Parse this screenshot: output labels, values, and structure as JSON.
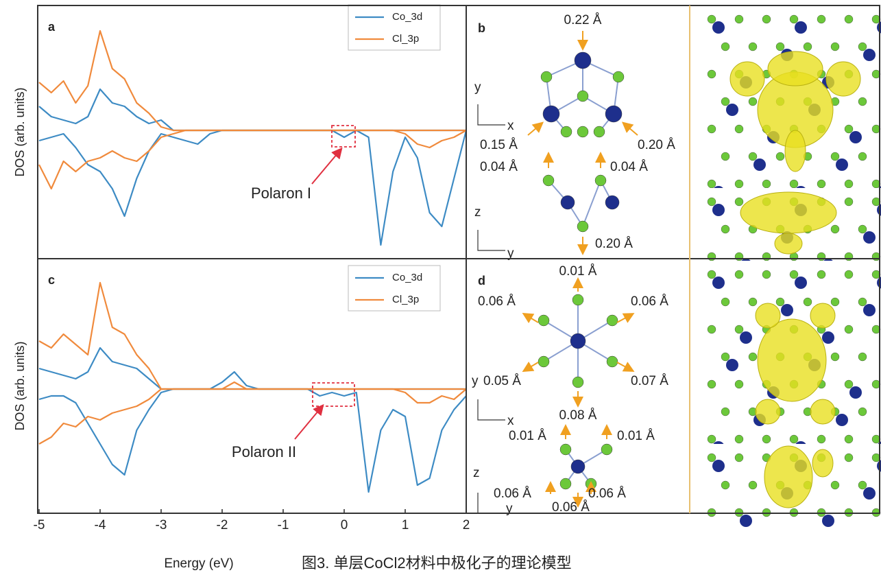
{
  "chart_data": [
    {
      "type": "line",
      "panel": "a",
      "ylabel": "DOS (arb. units)",
      "x": [
        -5,
        -4.8,
        -4.6,
        -4.4,
        -4.2,
        -4,
        -3.8,
        -3.6,
        -3.4,
        -3.2,
        -3,
        -2.8,
        -2.6,
        -2.4,
        -2.2,
        -2,
        -1.8,
        -1.6,
        -1.4,
        -1.2,
        -1,
        -0.8,
        -0.6,
        -0.4,
        -0.2,
        0,
        0.2,
        0.4,
        0.6,
        0.8,
        1,
        1.2,
        1.4,
        1.6,
        1.8,
        2
      ],
      "xlim": [
        -5,
        2
      ],
      "ylim": [
        -9.35,
        9.1
      ],
      "series": [
        {
          "name": "Co_3d",
          "color": "#3d8bc4",
          "values": [
            1.75,
            1,
            0.75,
            0.5,
            1,
            3,
            2,
            1.75,
            1,
            0.5,
            0.75,
            0,
            0,
            0,
            0,
            0,
            0,
            0,
            0,
            0,
            0,
            0,
            0,
            0,
            0,
            0,
            0,
            0,
            0,
            0,
            0,
            0,
            0,
            0,
            0,
            0
          ],
          "values_down": [
            -0.75,
            -0.5,
            -0.25,
            -1.25,
            -2.5,
            -3,
            -4.25,
            -6.25,
            -3.5,
            -1.5,
            -0.25,
            -0.5,
            -0.75,
            -1,
            -0.25,
            0,
            0,
            0,
            0,
            0,
            0,
            0,
            0,
            0,
            0,
            -0.5,
            0,
            -0.5,
            -8.35,
            -3,
            -0.5,
            -2,
            -6,
            -7,
            -3.5,
            0
          ]
        },
        {
          "name": "Cl_3p",
          "color": "#f08a3c",
          "values": [
            3.5,
            2.75,
            3.6,
            2,
            3.25,
            7.25,
            4.5,
            3.75,
            2,
            1.25,
            0.25,
            0,
            0,
            0,
            0,
            0,
            0,
            0,
            0,
            0,
            0,
            0,
            0,
            0,
            0,
            0,
            0,
            0,
            0,
            0,
            0,
            0,
            0,
            0,
            0,
            0
          ],
          "values_down": [
            -2.5,
            -4.25,
            -2.25,
            -3,
            -2.25,
            -2,
            -1.5,
            -2,
            -2.25,
            -1.5,
            -0.5,
            -0.25,
            0,
            0,
            0,
            0,
            0,
            0,
            0,
            0,
            0,
            0,
            0,
            0,
            0,
            0,
            0,
            0,
            0,
            0,
            -0.25,
            -1,
            -1.25,
            -0.75,
            -0.5,
            0
          ]
        }
      ],
      "annotations": [
        {
          "text": "Polaron I"
        }
      ]
    },
    {
      "type": "line",
      "panel": "c",
      "ylabel": "DOS (arb. units)",
      "xlabel": "Energy (eV)",
      "x": [
        -5,
        -4.8,
        -4.6,
        -4.4,
        -4.2,
        -4,
        -3.8,
        -3.6,
        -3.4,
        -3.2,
        -3,
        -2.8,
        -2.6,
        -2.4,
        -2.2,
        -2,
        -1.8,
        -1.6,
        -1.4,
        -1.2,
        -1,
        -0.8,
        -0.6,
        -0.4,
        -0.2,
        0,
        0.2,
        0.4,
        0.6,
        0.8,
        1,
        1.2,
        1.4,
        1.6,
        1.8,
        2
      ],
      "xlim": [
        -5,
        2
      ],
      "ylim": [
        -9.05,
        9.5
      ],
      "xticks": [
        -5,
        -4,
        -3,
        -2,
        -1,
        0,
        1,
        2
      ],
      "series": [
        {
          "name": "Co_3d",
          "color": "#3d8bc4",
          "values": [
            1.5,
            1.25,
            1,
            0.75,
            1.25,
            3,
            2,
            1.75,
            1.5,
            0.75,
            0,
            0,
            0,
            0,
            0,
            0.5,
            1.25,
            0.25,
            0,
            0,
            0,
            0,
            0,
            0,
            0,
            0,
            0,
            0,
            0,
            0,
            0,
            0,
            0,
            0,
            0,
            0
          ],
          "values_down": [
            -0.75,
            -0.5,
            -0.5,
            -1,
            -2.5,
            -4,
            -5.5,
            -6.25,
            -3,
            -1.5,
            -0.25,
            0,
            0,
            0,
            0,
            0,
            0,
            0,
            0,
            0,
            0,
            0,
            0,
            -0.5,
            -0.25,
            -0.5,
            -0.25,
            -7.5,
            -3,
            -1.5,
            -2,
            -7,
            -6.5,
            -3,
            -1.5,
            -0.5
          ]
        },
        {
          "name": "Cl_3p",
          "color": "#f08a3c",
          "values": [
            3.5,
            3,
            4,
            3.25,
            2.5,
            7.75,
            4.5,
            4,
            2.5,
            1.5,
            0,
            0,
            0,
            0,
            0,
            0,
            0.5,
            0,
            0,
            0,
            0,
            0,
            0,
            0,
            0,
            0,
            0,
            0,
            0,
            0,
            0,
            0,
            0,
            0,
            0,
            0
          ],
          "values_down": [
            -4,
            -3.5,
            -2.5,
            -2.75,
            -2,
            -2.25,
            -1.75,
            -1.5,
            -1.25,
            -0.75,
            0,
            0,
            0,
            0,
            0,
            0,
            0,
            0,
            0,
            0,
            0,
            0,
            0,
            0,
            0,
            0,
            0,
            0,
            0,
            0,
            -0.25,
            -1,
            -1,
            -0.5,
            -0.75,
            0
          ]
        }
      ],
      "annotations": [
        {
          "text": "Polaron II"
        }
      ]
    }
  ],
  "structure_b": {
    "letter": "b",
    "labels": [
      "0.22 Å",
      "y",
      "x",
      "0.15 Å",
      "0.20 Å",
      "0.04 Å",
      "0.04 Å",
      "z",
      "y",
      "0.20 Å"
    ]
  },
  "structure_d": {
    "letter": "d",
    "labels": [
      "0.01 Å",
      "0.06 Å",
      "0.06 Å",
      "y",
      "0.05 Å",
      "0.07 Å",
      "0.08 Å",
      "x",
      "0.01 Å",
      "0.01 Å",
      "z",
      "0.06 Å",
      "0.06 Å",
      "0.06 Å",
      "y"
    ]
  },
  "caption": "图3.  单层CoCl2材料中极化子的理论模型"
}
